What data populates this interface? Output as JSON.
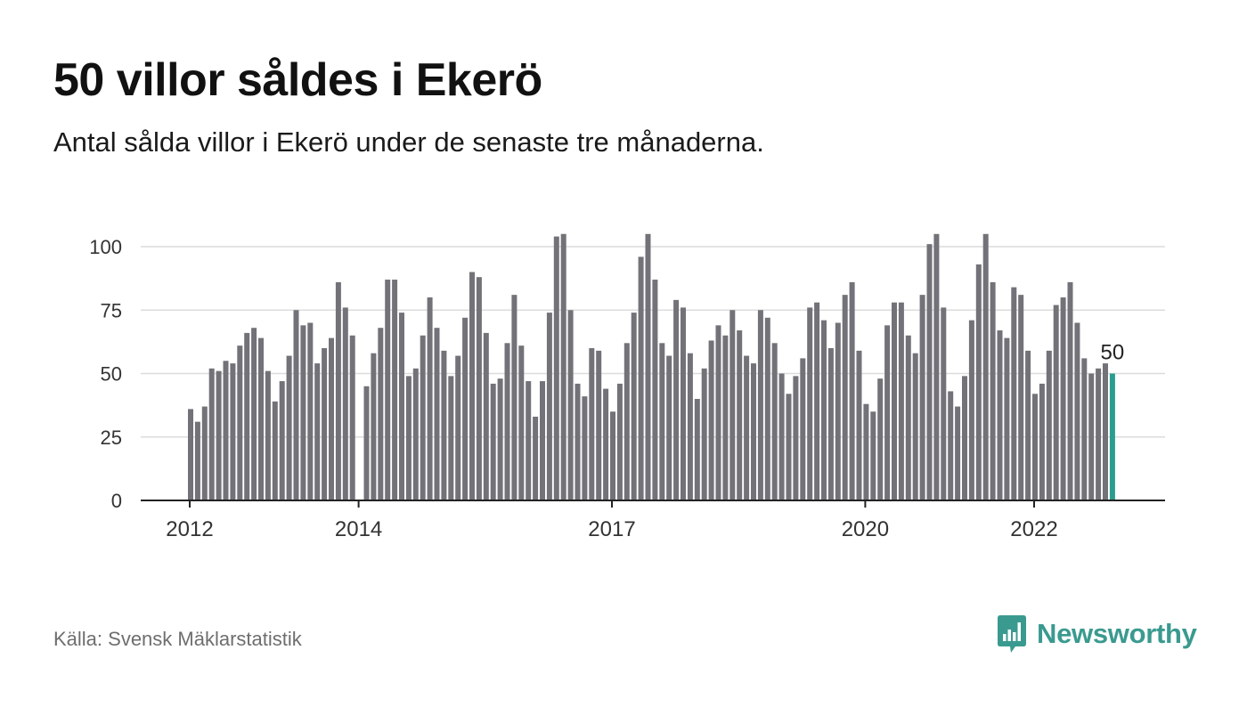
{
  "title": "50 villor såldes i Ekerö",
  "subtitle": "Antal sålda villor i Ekerö under de senaste tre månaderna.",
  "source": "Källa: Svensk Mäklarstatistik",
  "brand": "Newsworthy",
  "colors": {
    "bar": "#737278",
    "highlight": "#2a9d8f",
    "grid": "#dcdcdc",
    "axis": "#222222",
    "brand": "#3a9a8f"
  },
  "chart_data": {
    "type": "bar",
    "ylim": [
      0,
      105
    ],
    "yticks": [
      0,
      25,
      50,
      75,
      100
    ],
    "xticks": [
      {
        "label": "2012",
        "index": 0
      },
      {
        "label": "2014",
        "index": 24
      },
      {
        "label": "2017",
        "index": 60
      },
      {
        "label": "2020",
        "index": 96
      },
      {
        "label": "2022",
        "index": 120
      }
    ],
    "values": [
      36,
      31,
      37,
      52,
      51,
      55,
      54,
      61,
      66,
      68,
      64,
      51,
      39,
      47,
      57,
      75,
      69,
      70,
      54,
      60,
      64,
      86,
      76,
      65,
      0,
      45,
      58,
      68,
      87,
      87,
      74,
      49,
      52,
      65,
      80,
      68,
      59,
      49,
      57,
      72,
      90,
      88,
      66,
      46,
      48,
      62,
      81,
      61,
      47,
      33,
      47,
      74,
      104,
      105,
      75,
      46,
      41,
      60,
      59,
      44,
      35,
      46,
      62,
      74,
      96,
      105,
      87,
      62,
      57,
      79,
      76,
      58,
      40,
      52,
      63,
      69,
      65,
      75,
      67,
      57,
      54,
      75,
      72,
      62,
      50,
      42,
      49,
      56,
      76,
      78,
      71,
      60,
      70,
      81,
      86,
      59,
      38,
      35,
      48,
      69,
      78,
      78,
      65,
      58,
      81,
      101,
      105,
      76,
      43,
      37,
      49,
      71,
      93,
      105,
      86,
      67,
      64,
      84,
      81,
      59,
      42,
      46,
      59,
      77,
      80,
      86,
      70,
      56,
      50,
      52,
      54,
      50
    ],
    "highlight_label": "50"
  }
}
